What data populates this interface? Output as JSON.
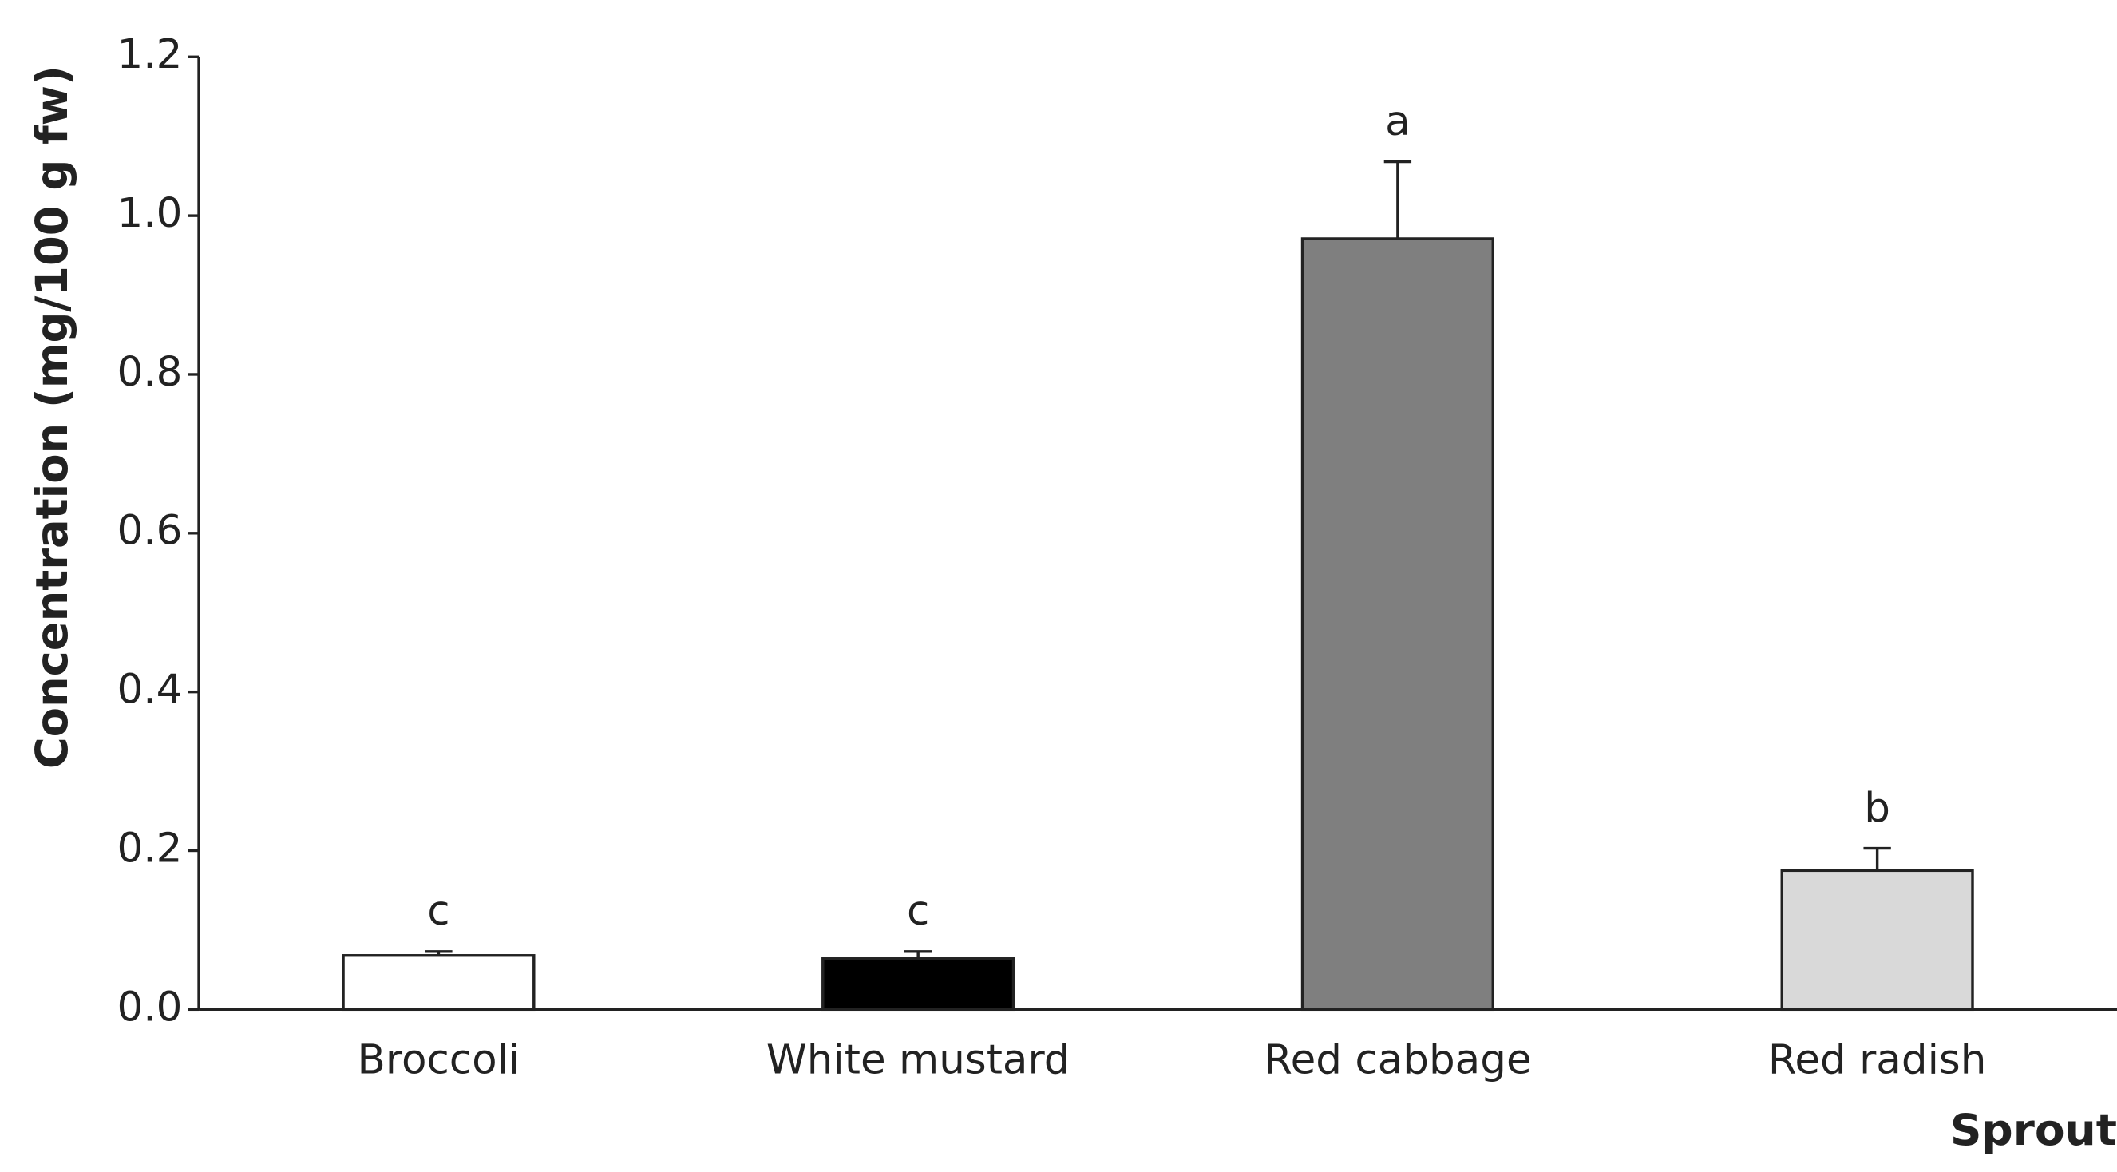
{
  "chart_data": {
    "type": "bar",
    "x_label": "Sprout",
    "y_label": "Concentration (mg/100 g fw)",
    "categories": [
      "Broccoli",
      "White mustard",
      "Red cabbage",
      "Red radish"
    ],
    "values": [
      0.068,
      0.064,
      0.971,
      0.175
    ],
    "errors": [
      0.005,
      0.009,
      0.097,
      0.028
    ],
    "colors": [
      "#ffffff",
      "#000000",
      "#7f7f7f",
      "#d9d9d9"
    ],
    "labels": [
      "c",
      "c",
      "a",
      "b"
    ],
    "ylim": [
      0,
      1.2
    ],
    "yticks": [
      {
        "value": 0,
        "label": "0.0"
      },
      0.2,
      0.4,
      0.6,
      0.8,
      {
        "value": 1,
        "label": "1.0"
      },
      1.2
    ]
  }
}
